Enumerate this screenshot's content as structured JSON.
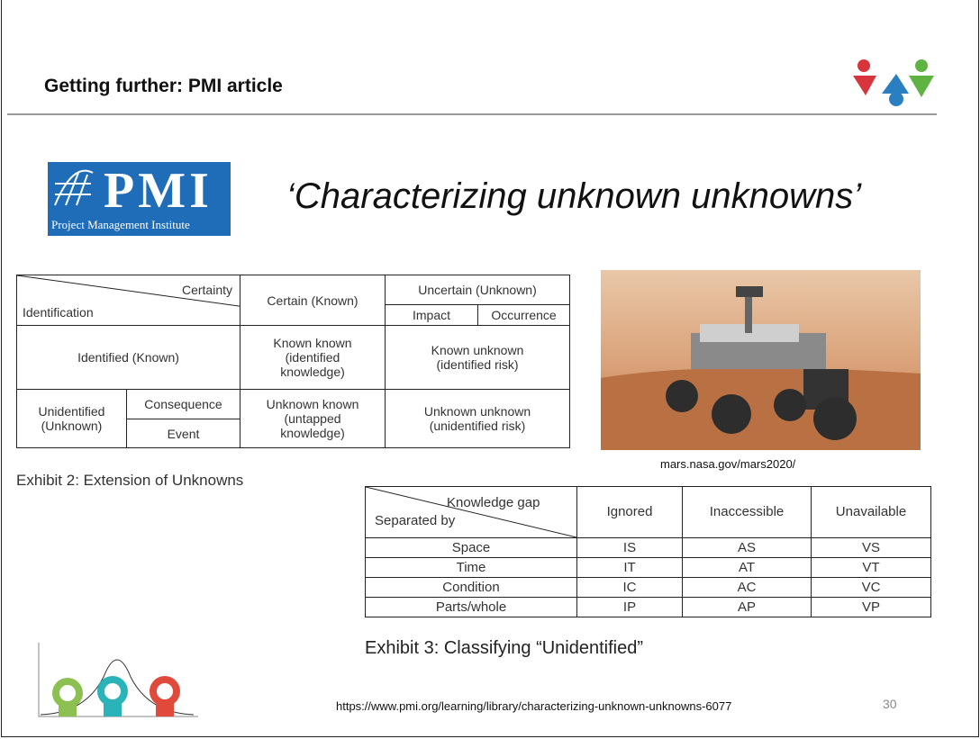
{
  "header": {
    "title": "Getting further: PMI article"
  },
  "pmi_logo": {
    "mark": "PMI",
    "name": "Project Management Institute"
  },
  "headline": "‘Characterizing unknown unknowns’",
  "exhibit2": {
    "table": {
      "certainty": "Certainty",
      "identification": "Identification",
      "certain": "Certain (Known)",
      "uncertain": "Uncertain (Unknown)",
      "impact": "Impact",
      "occurrence": "Occurrence",
      "identified": "Identified (Known)",
      "known_known": "Known known (identified knowledge)",
      "known_unknown": "Known unknown (identified risk)",
      "unidentified": "Unidentified (Unknown)",
      "consequence": "Consequence",
      "event": "Event",
      "unknown_known": "Unknown known (untapped knowledge)",
      "unknown_unknown": "Unknown unknown (unidentified risk)"
    },
    "caption": "Exhibit 2: Extension of Unknowns"
  },
  "image": {
    "caption": "mars.nasa.gov/mars2020/"
  },
  "exhibit3": {
    "table": {
      "knowledge_gap": "Knowledge gap",
      "separated_by": "Separated by",
      "columns": [
        "Ignored",
        "Inaccessible",
        "Unavailable"
      ],
      "rows": [
        [
          "Space",
          "IS",
          "AS",
          "VS"
        ],
        [
          "Time",
          "IT",
          "AT",
          "VT"
        ],
        [
          "Condition",
          "IC",
          "AC",
          "VC"
        ],
        [
          "Parts/whole",
          "IP",
          "AP",
          "VP"
        ]
      ]
    },
    "caption": "Exhibit 3: Classifying “Unidentified”"
  },
  "footer": {
    "url": "https://www.pmi.org/learning/library/characterizing-unknown-unknowns-6077",
    "page_number": "30"
  }
}
